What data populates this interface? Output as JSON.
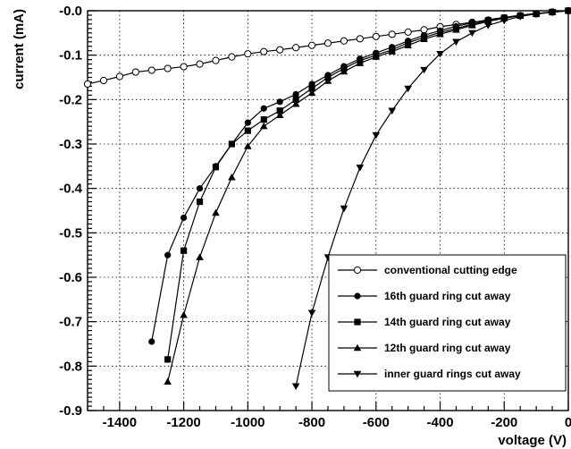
{
  "chart_data": {
    "type": "line",
    "xlabel": "voltage (V)",
    "ylabel": "current (mA)",
    "xlim": [
      -1500,
      0
    ],
    "ylim": [
      -0.9,
      0
    ],
    "grid": true,
    "legend_position": "bottom-right",
    "x_ticks": [
      -1400,
      -1200,
      -1000,
      -800,
      -600,
      -400,
      -200,
      0
    ],
    "x_tick_labels": [
      "-1400",
      "-1200",
      "-1000",
      "-800",
      "-600",
      "-400",
      "-200",
      "0"
    ],
    "y_ticks": [
      0,
      -0.1,
      -0.2,
      -0.3,
      -0.4,
      -0.5,
      -0.6,
      -0.7,
      -0.8,
      -0.9
    ],
    "y_tick_labels": [
      "-0.0",
      "-0.1",
      "-0.2",
      "-0.3",
      "-0.4",
      "-0.5",
      "-0.6",
      "-0.7",
      "-0.8",
      "-0.9"
    ],
    "series": [
      {
        "name": "conventional cutting edge",
        "marker": "open-circle",
        "points": [
          [
            -1500,
            -0.165
          ],
          [
            -1450,
            -0.157
          ],
          [
            -1400,
            -0.148
          ],
          [
            -1350,
            -0.138
          ],
          [
            -1300,
            -0.134
          ],
          [
            -1250,
            -0.13
          ],
          [
            -1200,
            -0.126
          ],
          [
            -1150,
            -0.12
          ],
          [
            -1100,
            -0.112
          ],
          [
            -1050,
            -0.104
          ],
          [
            -1000,
            -0.097
          ],
          [
            -950,
            -0.092
          ],
          [
            -900,
            -0.088
          ],
          [
            -850,
            -0.083
          ],
          [
            -800,
            -0.078
          ],
          [
            -750,
            -0.073
          ],
          [
            -700,
            -0.068
          ],
          [
            -650,
            -0.063
          ],
          [
            -600,
            -0.058
          ],
          [
            -550,
            -0.053
          ],
          [
            -500,
            -0.048
          ],
          [
            -450,
            -0.043
          ],
          [
            -400,
            -0.036
          ],
          [
            -350,
            -0.031
          ],
          [
            -300,
            -0.026
          ],
          [
            -250,
            -0.021
          ],
          [
            -200,
            -0.016
          ],
          [
            -150,
            -0.011
          ],
          [
            -100,
            -0.007
          ],
          [
            -50,
            -0.003
          ],
          [
            0,
            0.0
          ]
        ]
      },
      {
        "name": "16th guard ring cut away",
        "marker": "filled-circle",
        "points": [
          [
            -1300,
            -0.745
          ],
          [
            -1250,
            -0.55
          ],
          [
            -1200,
            -0.466
          ],
          [
            -1150,
            -0.4
          ],
          [
            -1100,
            -0.35
          ],
          [
            -1050,
            -0.3
          ],
          [
            -1000,
            -0.252
          ],
          [
            -950,
            -0.22
          ],
          [
            -900,
            -0.205
          ],
          [
            -850,
            -0.188
          ],
          [
            -800,
            -0.165
          ],
          [
            -750,
            -0.145
          ],
          [
            -700,
            -0.125
          ],
          [
            -650,
            -0.108
          ],
          [
            -600,
            -0.095
          ],
          [
            -550,
            -0.082
          ],
          [
            -500,
            -0.068
          ],
          [
            -450,
            -0.055
          ],
          [
            -400,
            -0.045
          ],
          [
            -350,
            -0.035
          ],
          [
            -300,
            -0.027
          ],
          [
            -250,
            -0.02
          ],
          [
            -200,
            -0.015
          ],
          [
            -150,
            -0.01
          ],
          [
            -100,
            -0.006
          ],
          [
            -50,
            -0.003
          ],
          [
            0,
            0.0
          ]
        ]
      },
      {
        "name": "14th guard ring cut away",
        "marker": "filled-square",
        "points": [
          [
            -1250,
            -0.785
          ],
          [
            -1200,
            -0.54
          ],
          [
            -1150,
            -0.43
          ],
          [
            -1100,
            -0.352
          ],
          [
            -1050,
            -0.3
          ],
          [
            -1000,
            -0.27
          ],
          [
            -950,
            -0.245
          ],
          [
            -900,
            -0.225
          ],
          [
            -850,
            -0.2
          ],
          [
            -800,
            -0.175
          ],
          [
            -750,
            -0.15
          ],
          [
            -700,
            -0.13
          ],
          [
            -650,
            -0.112
          ],
          [
            -600,
            -0.1
          ],
          [
            -550,
            -0.088
          ],
          [
            -500,
            -0.072
          ],
          [
            -450,
            -0.06
          ],
          [
            -400,
            -0.049
          ],
          [
            -350,
            -0.04
          ],
          [
            -300,
            -0.03
          ],
          [
            -250,
            -0.022
          ],
          [
            -200,
            -0.016
          ],
          [
            -150,
            -0.011
          ],
          [
            -100,
            -0.007
          ],
          [
            -50,
            -0.003
          ],
          [
            0,
            0.0
          ]
        ]
      },
      {
        "name": "12th guard ring cut away",
        "marker": "filled-triangle-up",
        "points": [
          [
            -1250,
            -0.835
          ],
          [
            -1200,
            -0.685
          ],
          [
            -1150,
            -0.555
          ],
          [
            -1100,
            -0.455
          ],
          [
            -1050,
            -0.375
          ],
          [
            -1000,
            -0.305
          ],
          [
            -950,
            -0.26
          ],
          [
            -900,
            -0.235
          ],
          [
            -850,
            -0.21
          ],
          [
            -800,
            -0.185
          ],
          [
            -750,
            -0.158
          ],
          [
            -700,
            -0.137
          ],
          [
            -650,
            -0.118
          ],
          [
            -600,
            -0.104
          ],
          [
            -550,
            -0.092
          ],
          [
            -500,
            -0.078
          ],
          [
            -450,
            -0.064
          ],
          [
            -400,
            -0.053
          ],
          [
            -350,
            -0.043
          ],
          [
            -300,
            -0.033
          ],
          [
            -250,
            -0.024
          ],
          [
            -200,
            -0.017
          ],
          [
            -150,
            -0.011
          ],
          [
            -100,
            -0.007
          ],
          [
            -50,
            -0.003
          ],
          [
            0,
            0.0
          ]
        ]
      },
      {
        "name": "inner guard rings cut away",
        "marker": "filled-triangle-down",
        "points": [
          [
            -850,
            -0.845
          ],
          [
            -800,
            -0.68
          ],
          [
            -750,
            -0.555
          ],
          [
            -700,
            -0.445
          ],
          [
            -650,
            -0.353
          ],
          [
            -600,
            -0.28
          ],
          [
            -550,
            -0.225
          ],
          [
            -500,
            -0.175
          ],
          [
            -450,
            -0.133
          ],
          [
            -400,
            -0.097
          ],
          [
            -350,
            -0.07
          ],
          [
            -300,
            -0.05
          ],
          [
            -250,
            -0.033
          ],
          [
            -200,
            -0.022
          ],
          [
            -150,
            -0.013
          ],
          [
            -100,
            -0.007
          ],
          [
            -50,
            -0.003
          ],
          [
            0,
            0.0
          ]
        ]
      }
    ]
  }
}
